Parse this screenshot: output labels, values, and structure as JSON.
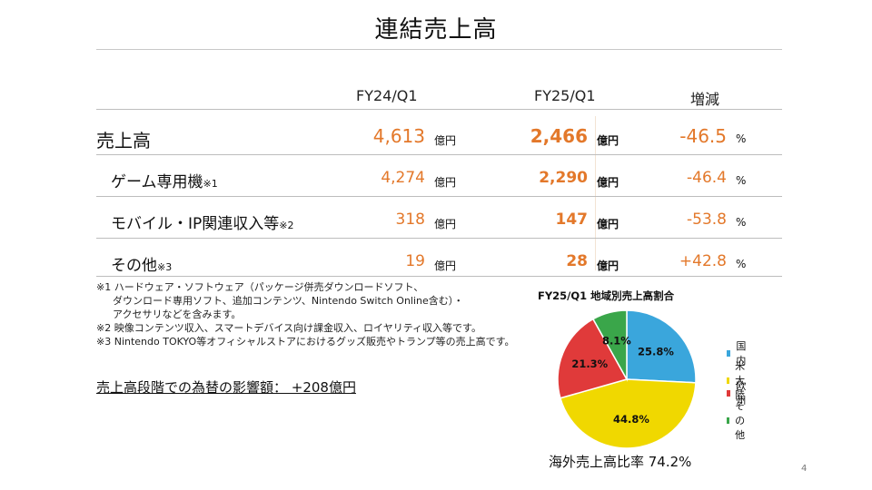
{
  "title": "連結売上高",
  "headers": {
    "fy24": "FY24/Q1",
    "fy25": "FY25/Q1",
    "change": "増減"
  },
  "rows": [
    {
      "label": "売上高",
      "note": "",
      "fy24": "4,613",
      "fy24_unit": "億円",
      "fy25": "2,466",
      "fy25_unit": "億円",
      "change": "-46.5",
      "change_unit": "%"
    },
    {
      "label": "ゲーム専用機",
      "note": "※1",
      "fy24": "4,274",
      "fy24_unit": "億円",
      "fy25": "2,290",
      "fy25_unit": "億円",
      "change": "-46.4",
      "change_unit": "%"
    },
    {
      "label": "モバイル・IP関連収入等",
      "note": "※2",
      "fy24": "318",
      "fy24_unit": "億円",
      "fy25": "147",
      "fy25_unit": "億円",
      "change": "-53.8",
      "change_unit": "%"
    },
    {
      "label": "その他",
      "note": "※3",
      "fy24": "19",
      "fy24_unit": "億円",
      "fy25": "28",
      "fy25_unit": "億円",
      "change": "+42.8",
      "change_unit": "%"
    }
  ],
  "footnotes": [
    "※1 ハードウェア・ソフトウェア（パッケージ併売ダウンロードソフト、",
    "ダウンロード専用ソフト、追加コンテンツ、Nintendo Switch Online含む）・",
    "アクセサリなどを含みます。",
    "※2 映像コンテンツ収入、スマートデバイス向け課金収入、ロイヤリティ収入等です。",
    "※3 Nintendo TOKYO等オフィシャルストアにおけるグッズ販売やトランプ等の売上高です。"
  ],
  "fx_impact": "売上高段階での為替の影響額： +208億円",
  "overseas_ratio": "海外売上高比率 74.2%",
  "page_number": "4",
  "chart_data": {
    "type": "pie",
    "title": "FY25/Q1 地域別売上高割合",
    "labels": [
      "国内",
      "米大陸",
      "欧州",
      "その他"
    ],
    "values": [
      25.8,
      44.8,
      21.3,
      8.1
    ],
    "value_labels": [
      "25.8%",
      "44.8%",
      "21.3%",
      "8.1%"
    ],
    "colors": [
      "#3aa6dc",
      "#f0d800",
      "#e03a3a",
      "#3aa64a"
    ],
    "legend": "right",
    "start": "top, clockwise"
  }
}
